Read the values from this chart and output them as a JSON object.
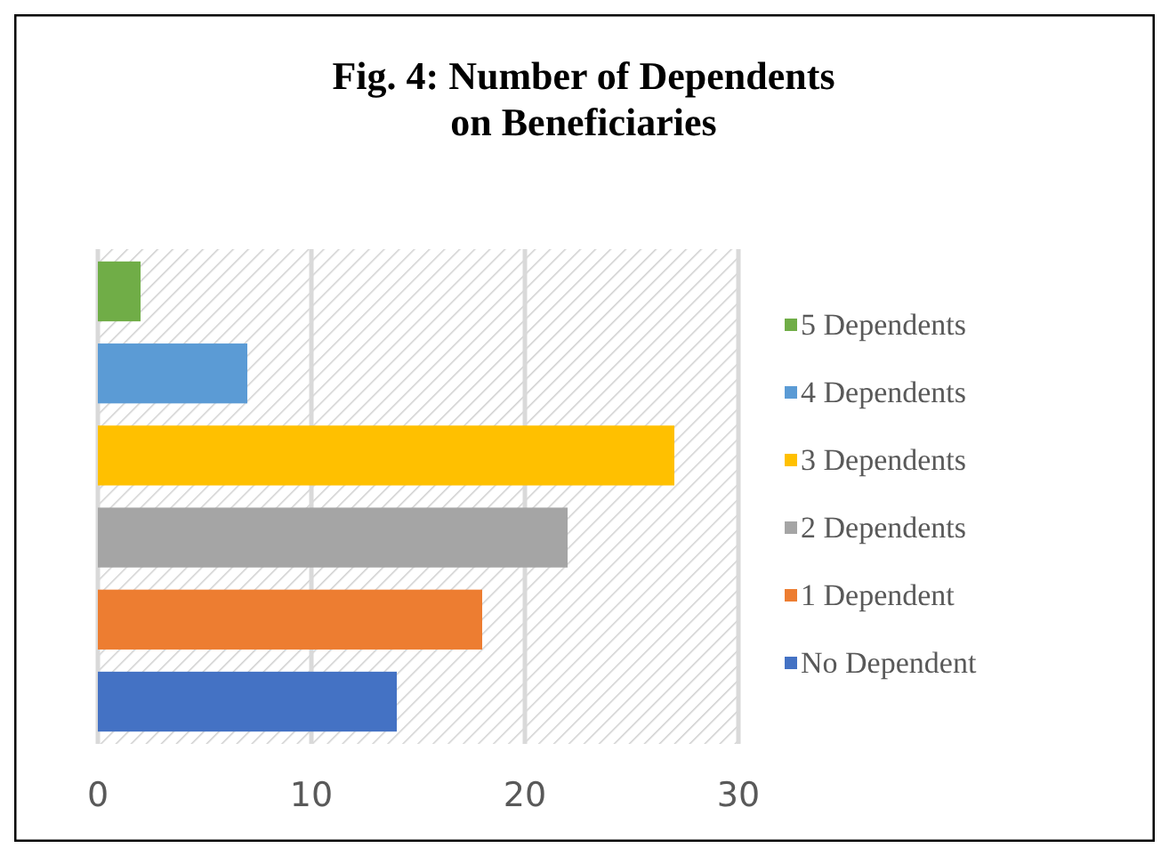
{
  "chart_data": {
    "type": "bar",
    "title": "Fig. 4: Number of Dependents on Beneficiaries",
    "orientation": "horizontal",
    "categories": [
      null
    ],
    "series": [
      {
        "name": "No Dependent",
        "color": "#4472c4",
        "values": [
          14
        ]
      },
      {
        "name": "1 Dependent",
        "color": "#ed7d31",
        "values": [
          18
        ]
      },
      {
        "name": "2 Dependents",
        "color": "#a5a5a5",
        "values": [
          22
        ]
      },
      {
        "name": "3 Dependents",
        "color": "#ffc000",
        "values": [
          27
        ]
      },
      {
        "name": "4 Dependents",
        "color": "#5b9bd5",
        "values": [
          7
        ]
      },
      {
        "name": "5 Dependents",
        "color": "#70ad47",
        "values": [
          2
        ]
      }
    ],
    "xlim": [
      0,
      30
    ],
    "xticks": [
      0,
      10,
      20,
      30
    ],
    "grid": "x",
    "legend": "right"
  }
}
